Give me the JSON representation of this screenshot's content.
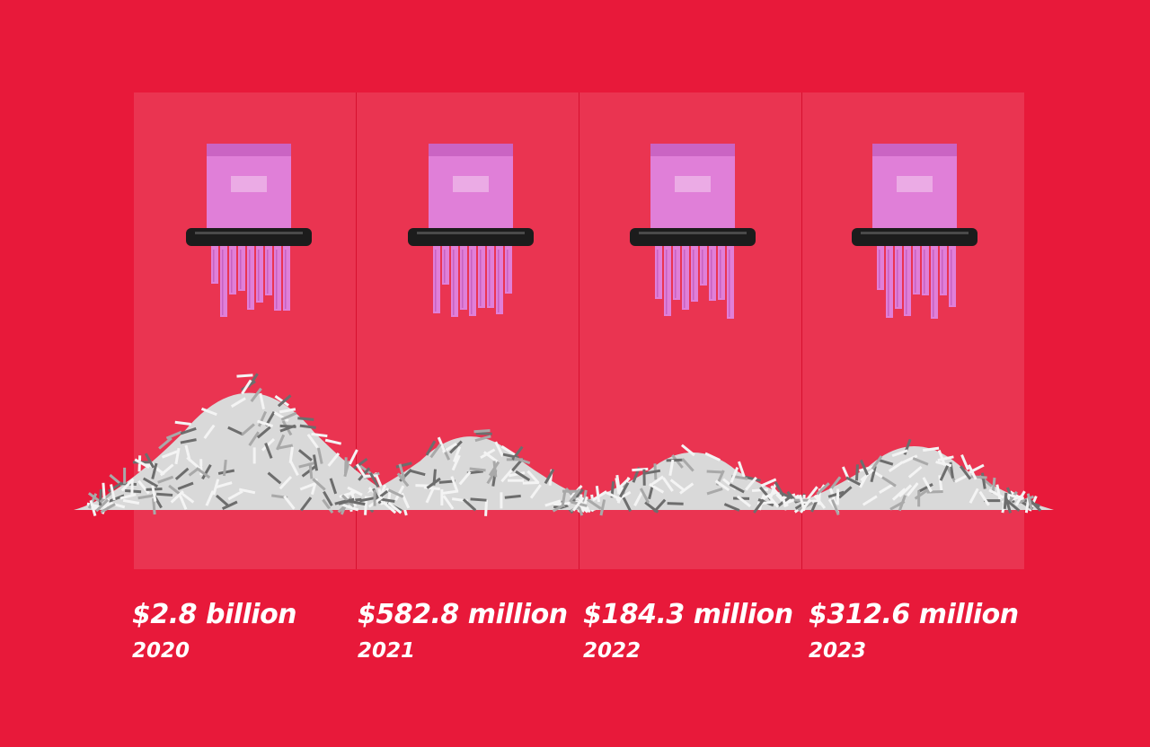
{
  "chart_data": {
    "type": "bar",
    "categories": [
      "2020",
      "2021",
      "2022",
      "2023"
    ],
    "values": [
      2800,
      582.8,
      184.3,
      312.6
    ],
    "value_labels": [
      "$2.8 billion",
      "$582.8 million",
      "$184.3 million",
      "$312.6 million"
    ],
    "title": "",
    "xlabel": "",
    "ylabel": "",
    "mark": "shredded-paper-pile",
    "colors": {
      "background": "#e8193a",
      "note": "#e07fd8",
      "note_dark": "#b84fb3",
      "shredder": "#1c1c1c",
      "shreds": "#d9d9d9"
    }
  }
}
